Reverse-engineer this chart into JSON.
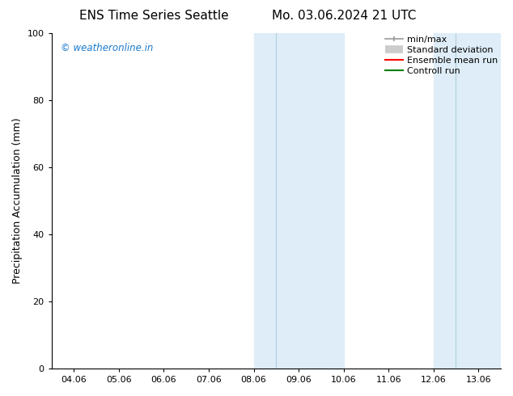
{
  "title_left": "ENS Time Series Seattle",
  "title_right": "Mo. 03.06.2024 21 UTC",
  "ylabel": "Precipitation Accumulation (mm)",
  "xlim": [
    0,
    9
  ],
  "ylim": [
    0,
    100
  ],
  "yticks": [
    0,
    20,
    40,
    60,
    80,
    100
  ],
  "xtick_labels": [
    "04.06",
    "05.06",
    "06.06",
    "07.06",
    "08.06",
    "09.06",
    "10.06",
    "11.06",
    "12.06",
    "13.06"
  ],
  "xtick_positions": [
    0,
    1,
    2,
    3,
    4,
    5,
    6,
    7,
    8,
    9
  ],
  "shaded_regions": [
    {
      "xmin": 4.0,
      "xmax": 4.5,
      "color": "#deedf7"
    },
    {
      "xmin": 4.5,
      "xmax": 6.0,
      "color": "#deedf7"
    },
    {
      "xmin": 8.0,
      "xmax": 8.5,
      "color": "#deedf7"
    },
    {
      "xmin": 8.5,
      "xmax": 9.5,
      "color": "#deedf7"
    }
  ],
  "shaded_dividers": [
    4.5,
    8.5
  ],
  "watermark_text": "© weatheronline.in",
  "watermark_color": "#1a7acc",
  "background_color": "#ffffff",
  "title_fontsize": 11,
  "tick_fontsize": 8,
  "ylabel_fontsize": 9,
  "legend_fontsize": 8,
  "minmax_color": "#999999",
  "std_color": "#cccccc",
  "ens_color": "#ff0000",
  "ctrl_color": "#008000"
}
